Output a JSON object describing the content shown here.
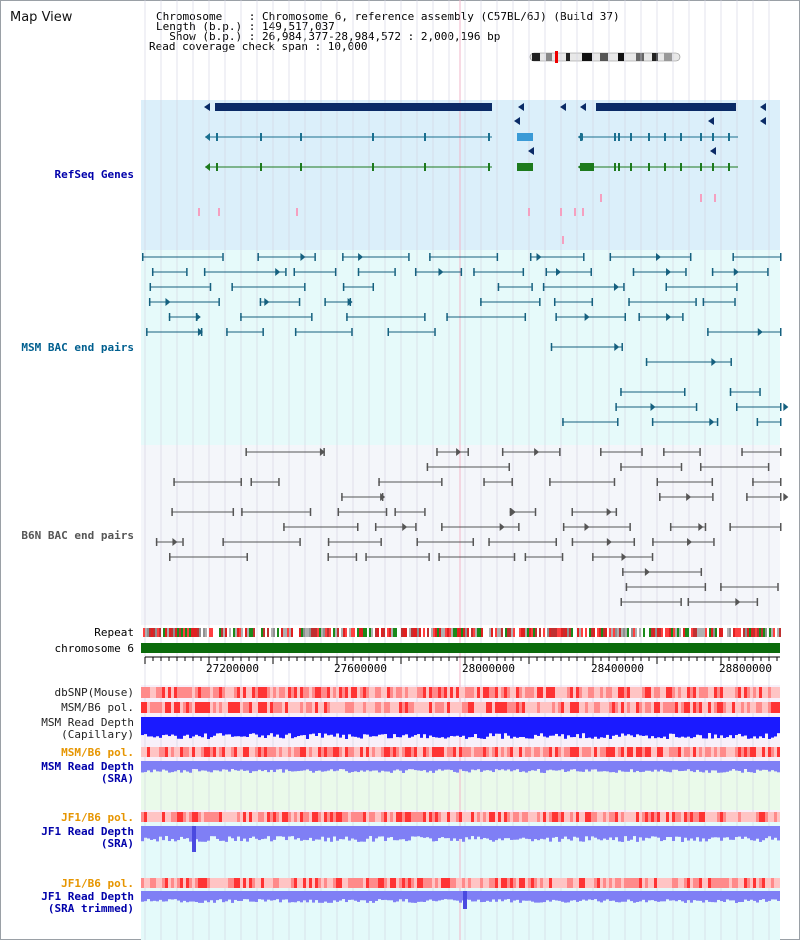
{
  "page": {
    "title": "Map View"
  },
  "info": {
    "chromosome": "Chromosome    : Chromosome 6, reference assembly (C57BL/6J) (Build 37)",
    "length": "Length (b.p.) : 149,517,037",
    "show": "  Show (b.p.) : 26,984,377-28,984,572 : 2,000,196 bp",
    "coverage": "Read coverage check span : 10,000"
  },
  "tracks": {
    "refseq": "RefSeq Genes",
    "msm_bac": "MSM BAC end pairs",
    "b6n_bac": "B6N BAC end pairs",
    "repeat": "Repeat",
    "chromosome": "chromosome 6",
    "dbsnp": "dbSNP(Mouse)",
    "msm_pol": "MSM/B6 pol.",
    "msm_depth_cap_1": "MSM Read Depth",
    "msm_depth_cap_2": "(Capillary)",
    "msm_pol_2": "MSM/B6 pol.",
    "msm_depth_sra_1": "MSM Read Depth",
    "msm_depth_sra_2": "(SRA)",
    "jf1_pol": "JF1/B6 pol.",
    "jf1_depth_sra_1": "JF1 Read Depth",
    "jf1_depth_sra_2": "(SRA)",
    "jf1_pol_2": "JF1/B6 pol.",
    "jf1_depth_trim_1": "JF1 Read Depth",
    "jf1_depth_trim_2": "(SRA trimmed)"
  },
  "axis": {
    "ticks": [
      "27200000",
      "27600000",
      "28000000",
      "28400000",
      "28800000"
    ]
  },
  "colors": {
    "refseq_bg": "#dbeffa",
    "msm_bac_bg": "#e6fafa",
    "b6n_bg": "#f4f6fa",
    "light_green_bg": "#eafaea",
    "light_cyan_bg": "#e4fafa",
    "gene_dark": "#0a2a66",
    "gene_mid": "#1a6f8f",
    "gene_green": "#1d7a1d",
    "msm_bac": "#15607f",
    "b6n_bac": "#555555",
    "chromosome_bar": "#0b6b0b",
    "depth_blue": "#1a1aff",
    "depth_light": "#7f7ff5",
    "pol_red": "#ff3333"
  }
}
